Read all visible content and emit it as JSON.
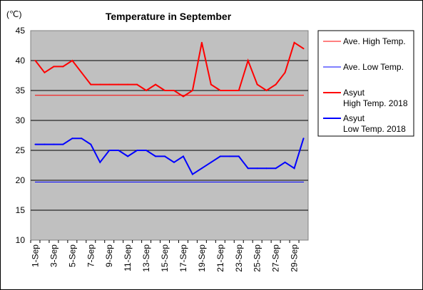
{
  "chart_data": {
    "type": "line",
    "title": "Temperature in September",
    "unit_label": "(℃)",
    "ylim": [
      10,
      45
    ],
    "y_ticks": [
      10,
      15,
      20,
      25,
      30,
      35,
      40,
      45
    ],
    "x": [
      "1-Sep",
      "2-Sep",
      "3-Sep",
      "4-Sep",
      "5-Sep",
      "6-Sep",
      "7-Sep",
      "8-Sep",
      "9-Sep",
      "10-Sep",
      "11-Sep",
      "12-Sep",
      "13-Sep",
      "14-Sep",
      "15-Sep",
      "16-Sep",
      "17-Sep",
      "18-Sep",
      "19-Sep",
      "20-Sep",
      "21-Sep",
      "22-Sep",
      "23-Sep",
      "24-Sep",
      "25-Sep",
      "26-Sep",
      "27-Sep",
      "28-Sep",
      "29-Sep",
      "30-Sep"
    ],
    "x_tick_labels": [
      "1-Sep",
      "3-Sep",
      "5-Sep",
      "7-Sep",
      "9-Sep",
      "11-Sep",
      "13-Sep",
      "15-Sep",
      "17-Sep",
      "19-Sep",
      "21-Sep",
      "23-Sep",
      "25-Sep",
      "27-Sep",
      "29-Sep"
    ],
    "grid": true,
    "legend_position": "right",
    "series": [
      {
        "name": "Ave. High Temp.",
        "legend_lines": [
          "Ave. High Temp."
        ],
        "color": "#ff0000",
        "width": 1,
        "constant": 34.2
      },
      {
        "name": "Ave. Low Temp.",
        "legend_lines": [
          "Ave. Low Temp."
        ],
        "color": "#0000ff",
        "width": 1,
        "constant": 19.7
      },
      {
        "name": "Asyut High Temp. 2018",
        "legend_lines": [
          "Asyut",
          "High Temp. 2018"
        ],
        "color": "#ff0000",
        "width": 2,
        "values": [
          40,
          38,
          39,
          39,
          40,
          38,
          36,
          36,
          36,
          36,
          36,
          36,
          35,
          36,
          35,
          35,
          34,
          35,
          43,
          36,
          35,
          35,
          35,
          40,
          36,
          35,
          36,
          38,
          43,
          42
        ]
      },
      {
        "name": "Asyut Low Temp. 2018",
        "legend_lines": [
          "Asyut",
          "Low Temp. 2018"
        ],
        "color": "#0000ff",
        "width": 2,
        "values": [
          26,
          26,
          26,
          26,
          27,
          27,
          26,
          23,
          25,
          25,
          24,
          25,
          25,
          24,
          24,
          23,
          24,
          21,
          22,
          23,
          24,
          24,
          24,
          22,
          22,
          22,
          22,
          23,
          22,
          27
        ]
      }
    ]
  }
}
